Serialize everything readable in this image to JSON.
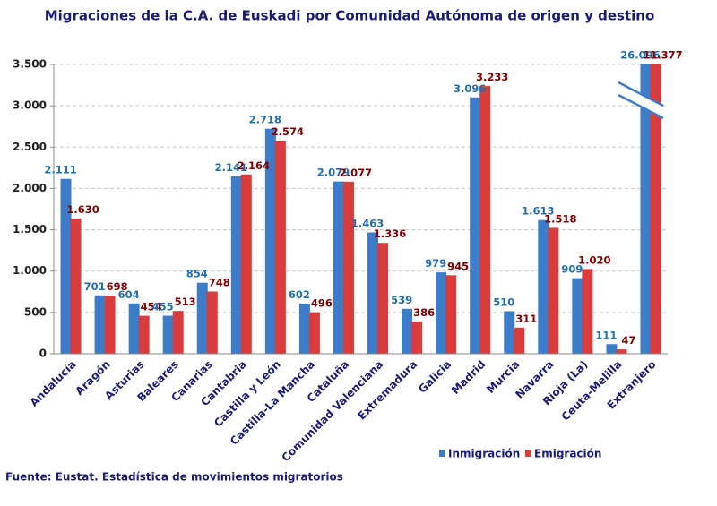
{
  "chart_data": {
    "type": "bar",
    "title": "Migraciones de la C.A. de Euskadi por Comunidad Autónoma de origen y destino",
    "source": "Fuente: Eustat. Estadística de movimientos migratorios",
    "categories": [
      "Andalucía",
      "Aragón",
      "Asturias",
      "Baleares",
      "Canarias",
      "Cantabria",
      "Castilla y León",
      "Castilla-La Mancha",
      "Cataluña",
      "Comunidad Valenciana",
      "Extremadura",
      "Galicia",
      "Madrid",
      "Murcia",
      "Navarra",
      "Rioja (La)",
      "Ceuta-Melilla",
      "Extranjero"
    ],
    "series": [
      {
        "name": "Inmigración",
        "color": "#3d7cc9",
        "label_color": "#1f6db3",
        "values": [
          2111,
          701,
          604,
          455,
          854,
          2141,
          2718,
          602,
          2079,
          1463,
          539,
          979,
          3096,
          510,
          1613,
          909,
          111,
          26096
        ],
        "value_labels": [
          "2.111",
          "701",
          "604",
          "455",
          "854",
          "2.141",
          "2.718",
          "602",
          "2.079",
          "1.463",
          "539",
          "979",
          "3.096",
          "510",
          "1.613",
          "909",
          "111",
          "26.096"
        ]
      },
      {
        "name": "Emigración",
        "color": "#d83c3c",
        "label_color": "#800000",
        "values": [
          1630,
          698,
          454,
          513,
          748,
          2164,
          2574,
          496,
          2077,
          1336,
          386,
          945,
          3233,
          311,
          1518,
          1020,
          47,
          11377
        ],
        "value_labels": [
          "1.630",
          "698",
          "454",
          "513",
          "748",
          "2.164",
          "2.574",
          "496",
          "2.077",
          "1.336",
          "386",
          "945",
          "3.233",
          "311",
          "1.518",
          "1.020",
          "47",
          "11.377"
        ]
      }
    ],
    "ylim": [
      0,
      3500
    ],
    "yticks": [
      0,
      500,
      {
        "value": 1000,
        "label": "1.000"
      },
      {
        "value": 1500,
        "label": "1.500"
      },
      {
        "value": 2000,
        "label": "2.000"
      },
      {
        "value": 2500,
        "label": "2.500"
      },
      {
        "value": 3000,
        "label": "3.000"
      },
      {
        "value": 3500,
        "label": "3.500"
      }
    ],
    "grid": true,
    "legend": "bottom"
  }
}
